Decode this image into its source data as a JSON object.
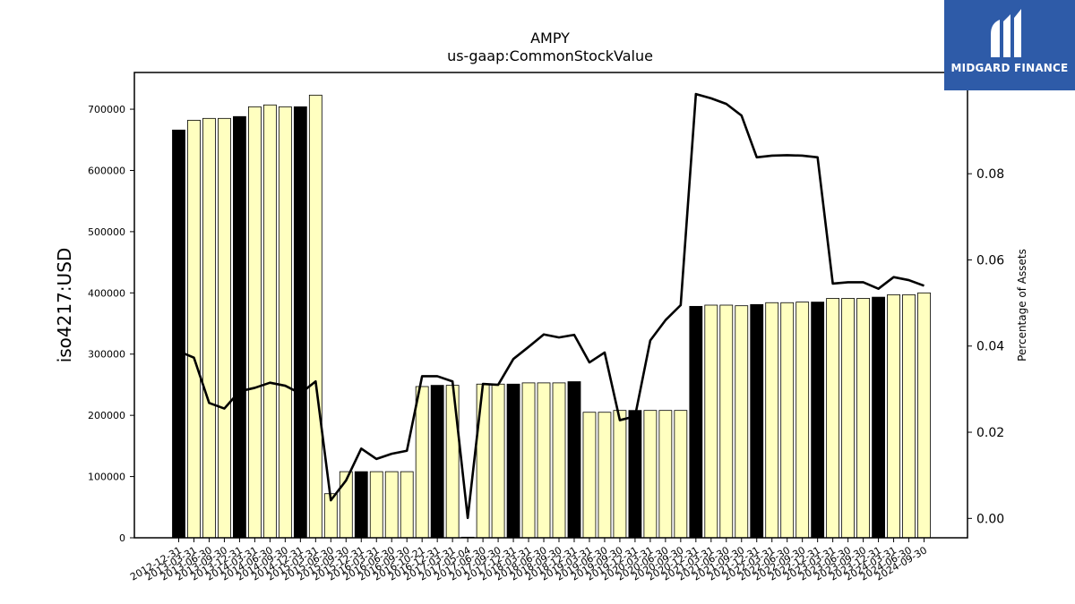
{
  "logo": {
    "text": "MIDGARD FINANCE"
  },
  "chart_data": {
    "type": "bar",
    "title": "AMPY",
    "subtitle": "us-gaap:CommonStockValue",
    "ylabel": "iso4217:USD",
    "y2label": "Percentage of Assets",
    "ylim": [
      0,
      760000
    ],
    "y2lim": [
      -0.0045,
      0.1035
    ],
    "yticks": [
      0,
      100000,
      200000,
      300000,
      400000,
      500000,
      600000,
      700000
    ],
    "y2ticks": [
      0.0,
      0.02,
      0.04,
      0.06,
      0.08
    ],
    "y2tick_labels": [
      "0.00",
      "0.02",
      "0.04",
      "0.06",
      "0.08"
    ],
    "colors": {
      "bar_fill": "#ffffc0",
      "bar_highlight": "#000000",
      "bar_edge": "#000000",
      "line": "#000000"
    },
    "categories": [
      "2012-12-31",
      "2013-03-31",
      "2013-06-30",
      "2013-09-30",
      "2013-12-31",
      "2014-03-31",
      "2014-06-30",
      "2014-09-30",
      "2014-12-31",
      "2015-03-31",
      "2015-06-30",
      "2015-09-30",
      "2015-12-31",
      "2016-03-31",
      "2016-06-30",
      "2016-09-30",
      "2016-10-21",
      "2016-12-31",
      "2017-03-31",
      "2017-05-04",
      "2017-06-30",
      "2017-09-30",
      "2017-12-31",
      "2018-03-31",
      "2018-06-30",
      "2018-09-30",
      "2018-12-31",
      "2019-03-31",
      "2019-06-30",
      "2019-09-30",
      "2019-12-31",
      "2020-03-31",
      "2020-06-30",
      "2020-09-30",
      "2020-12-31",
      "2021-03-31",
      "2021-06-30",
      "2021-09-30",
      "2021-12-31",
      "2022-03-31",
      "2022-06-30",
      "2022-09-30",
      "2022-12-31",
      "2023-03-31",
      "2023-06-30",
      "2023-09-30",
      "2023-12-31",
      "2024-03-31",
      "2024-06-30",
      "2024-09-30"
    ],
    "tick_labels": [
      "2012-12-31",
      "2013-03-31",
      "2013-06-30",
      "2013-09-30",
      "2013-12-31",
      "2014-03-31",
      "2014-06-30",
      "2014-09-30",
      "2014-12-31",
      "2015-03-31",
      "2015-06-30",
      "2015-09-30",
      "2015-12-31",
      "2016-03-31",
      "2016-06-30",
      "2016-09-30",
      "2016-10-21",
      "2016-12-31",
      "2017-03-31",
      "2017-05-04",
      "2017-06-30",
      "2017-09-30",
      "2017-12-31",
      "2018-03-31",
      "2018-06-30",
      "2018-09-30",
      "2018-12-31",
      "2019-03-31",
      "2019-06-30",
      "2019-09-30",
      "2019-12-31",
      "2020-03-31",
      "2020-06-30",
      "2020-09-30",
      "2020-12-31",
      "2021-03-31",
      "2021-06-30",
      "2021-09-30",
      "2021-12-31",
      "2022-03-31",
      "2022-06-30",
      "2022-09-30",
      "2022-12-31",
      "2023-03-31",
      "2023-06-30",
      "2023-09-30",
      "2023-12-31",
      "2024-03-31",
      "2024-06-30",
      "2024-09-30"
    ],
    "values": [
      666000,
      682000,
      685000,
      685000,
      688000,
      704000,
      707000,
      704000,
      704000,
      723000,
      72000,
      108000,
      108000,
      108000,
      108000,
      108000,
      247000,
      249000,
      249000,
      1000,
      251000,
      251000,
      251000,
      253000,
      253000,
      253000,
      255000,
      205000,
      205000,
      208000,
      208000,
      208000,
      208000,
      208000,
      378000,
      380000,
      380000,
      379000,
      381000,
      384000,
      384000,
      385000,
      385000,
      391000,
      391000,
      391000,
      393000,
      397000,
      397000,
      400000
    ],
    "highlight": [
      true,
      false,
      false,
      false,
      true,
      false,
      false,
      false,
      true,
      false,
      false,
      false,
      true,
      false,
      false,
      false,
      false,
      true,
      false,
      false,
      false,
      false,
      true,
      false,
      false,
      false,
      true,
      false,
      false,
      false,
      true,
      false,
      false,
      false,
      true,
      false,
      false,
      false,
      true,
      false,
      false,
      false,
      true,
      false,
      false,
      false,
      true,
      false,
      false,
      false
    ],
    "line_values": [
      0.0388,
      0.0373,
      0.0268,
      0.0255,
      0.0295,
      0.0303,
      0.0315,
      0.0308,
      0.029,
      0.0318,
      0.0042,
      0.0088,
      0.0162,
      0.0138,
      0.015,
      0.0157,
      0.033,
      0.033,
      0.0318,
      0.0001,
      0.0312,
      0.031,
      0.037,
      0.0398,
      0.0427,
      0.042,
      0.0426,
      0.0362,
      0.0385,
      0.0228,
      0.0237,
      0.0413,
      0.046,
      0.0495,
      0.0985,
      0.0975,
      0.0962,
      0.0935,
      0.0838,
      0.0842,
      0.0843,
      0.0842,
      0.0838,
      0.0545,
      0.0548,
      0.0548,
      0.0533,
      0.056,
      0.0553,
      0.054
    ]
  }
}
